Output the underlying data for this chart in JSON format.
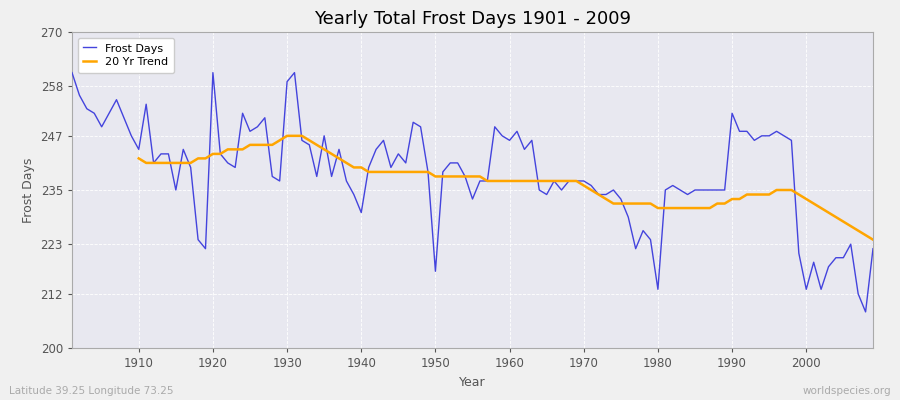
{
  "title": "Yearly Total Frost Days 1901 - 2009",
  "ylabel": "Frost Days",
  "xlabel": "Year",
  "footnote_left": "Latitude 39.25 Longitude 73.25",
  "footnote_right": "worldspecies.org",
  "legend_frost": "Frost Days",
  "legend_trend": "20 Yr Trend",
  "ylim": [
    200,
    270
  ],
  "yticks": [
    200,
    212,
    223,
    235,
    247,
    258,
    270
  ],
  "xlim": [
    1901,
    2009
  ],
  "xticks": [
    1910,
    1920,
    1930,
    1940,
    1950,
    1960,
    1970,
    1980,
    1990,
    2000
  ],
  "fig_bg_color": "#f0f0f0",
  "plot_bg_color": "#e8e8f0",
  "grid_color": "#ffffff",
  "frost_color": "#4444dd",
  "trend_color": "#ffa500",
  "frost_linewidth": 1.0,
  "trend_linewidth": 1.8,
  "title_fontsize": 13,
  "years": [
    1901,
    1902,
    1903,
    1904,
    1905,
    1906,
    1907,
    1908,
    1909,
    1910,
    1911,
    1912,
    1913,
    1914,
    1915,
    1916,
    1917,
    1918,
    1919,
    1920,
    1921,
    1922,
    1923,
    1924,
    1925,
    1926,
    1927,
    1928,
    1929,
    1930,
    1931,
    1932,
    1933,
    1934,
    1935,
    1936,
    1937,
    1938,
    1939,
    1940,
    1941,
    1942,
    1943,
    1944,
    1945,
    1946,
    1947,
    1948,
    1949,
    1950,
    1951,
    1952,
    1953,
    1954,
    1955,
    1956,
    1957,
    1958,
    1959,
    1960,
    1961,
    1962,
    1963,
    1964,
    1965,
    1966,
    1967,
    1968,
    1969,
    1970,
    1971,
    1972,
    1973,
    1974,
    1975,
    1976,
    1977,
    1978,
    1979,
    1980,
    1981,
    1982,
    1983,
    1984,
    1985,
    1986,
    1987,
    1988,
    1989,
    1990,
    1991,
    1992,
    1993,
    1994,
    1995,
    1996,
    1997,
    1998,
    1999,
    2000,
    2001,
    2002,
    2003,
    2004,
    2005,
    2006,
    2007,
    2008,
    2009
  ],
  "frost_days": [
    261,
    256,
    253,
    252,
    249,
    252,
    255,
    251,
    247,
    244,
    254,
    241,
    243,
    243,
    235,
    244,
    240,
    224,
    222,
    261,
    243,
    241,
    240,
    252,
    248,
    249,
    251,
    238,
    237,
    259,
    261,
    246,
    245,
    238,
    247,
    238,
    244,
    237,
    234,
    230,
    240,
    244,
    246,
    240,
    243,
    241,
    250,
    249,
    239,
    217,
    239,
    241,
    241,
    238,
    233,
    237,
    237,
    249,
    247,
    246,
    248,
    244,
    246,
    235,
    234,
    237,
    235,
    237,
    237,
    237,
    236,
    234,
    234,
    235,
    233,
    229,
    222,
    226,
    224,
    213,
    235,
    236,
    235,
    234,
    235,
    235,
    235,
    235,
    235,
    252,
    248,
    248,
    246,
    247,
    247,
    248,
    247,
    246,
    221,
    213,
    219,
    213,
    218,
    220,
    220,
    223,
    212,
    208,
    222
  ],
  "trend_start_year": 1910,
  "trend_values": [
    242,
    241,
    241,
    241,
    241,
    241,
    241,
    241,
    242,
    242,
    243,
    243,
    244,
    244,
    244,
    245,
    245,
    245,
    245,
    246,
    247,
    247,
    247,
    246,
    245,
    244,
    243,
    242,
    241,
    240,
    240,
    239,
    239,
    239,
    239,
    239,
    239,
    239,
    239,
    239,
    238,
    238,
    238,
    238,
    238,
    238,
    238,
    237,
    237,
    237,
    237,
    237,
    237,
    237,
    237,
    237,
    237,
    237,
    237,
    237,
    236,
    235,
    234,
    233,
    232,
    232,
    232,
    232,
    232,
    232,
    231,
    231,
    231,
    231,
    231,
    231,
    231,
    231,
    232,
    232,
    233,
    233,
    234,
    234,
    234,
    234,
    235,
    235,
    235,
    234,
    233,
    232,
    231,
    230,
    229,
    228,
    227,
    226,
    225,
    224
  ]
}
